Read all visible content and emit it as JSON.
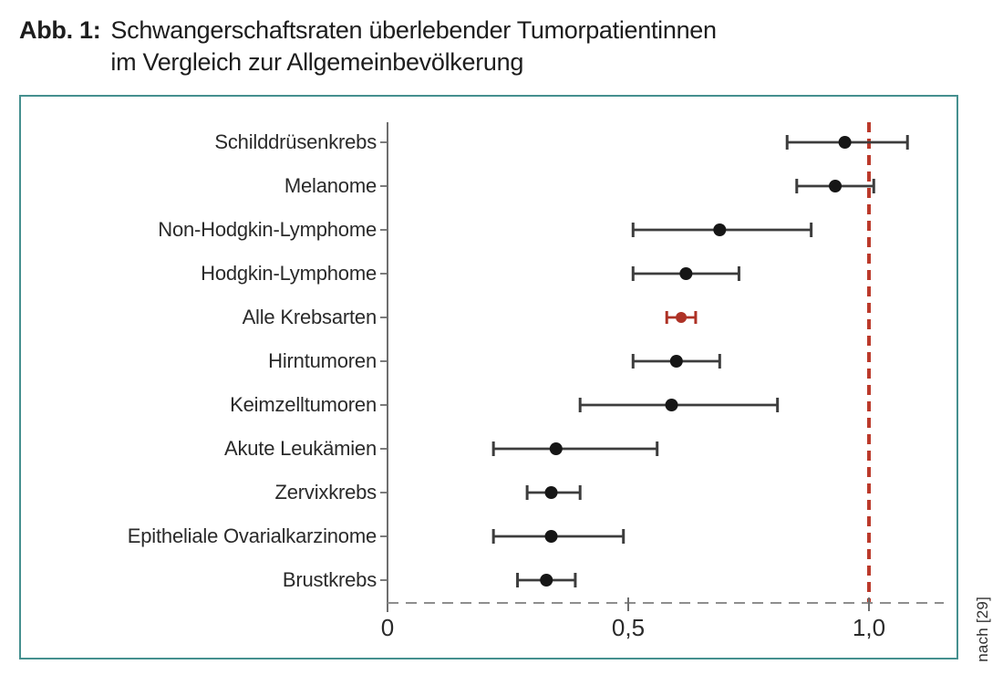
{
  "title": {
    "label": "Abb. 1:",
    "line1": "Schwangerschaftsraten überlebender Tumorpatientinnen",
    "line2": "im Vergleich zur Allgemeinbevölkerung"
  },
  "source_note": "nach [29]",
  "colors": {
    "panel_border": "#45908f",
    "errorbar": "#3d3d3d",
    "marker": "#161616",
    "highlight": "#ae3226",
    "reference_line": "#bb3a2b",
    "axis": "#6e6e6e",
    "baseline": "#8e8e8e",
    "tick_label": "#2a2a2a"
  },
  "chart_data": {
    "type": "scatter",
    "subtype": "forest-plot",
    "title": "Schwangerschaftsraten überlebender Tumorpatientinnen im Vergleich zur Allgemeinbevölkerung",
    "xlim": [
      0,
      1.15
    ],
    "grid": false,
    "reference_line_x": 1.0,
    "x_ticks": [
      {
        "value": 0,
        "label": "0"
      },
      {
        "value": 0.5,
        "label": "0,5"
      },
      {
        "value": 1.0,
        "label": "1,0"
      }
    ],
    "categories": [
      {
        "label": "Schilddrüsenkrebs",
        "value": 0.95,
        "ci_low": 0.83,
        "ci_high": 1.08,
        "highlight": false
      },
      {
        "label": "Melanome",
        "value": 0.93,
        "ci_low": 0.85,
        "ci_high": 1.01,
        "highlight": false
      },
      {
        "label": "Non-Hodgkin-Lymphome",
        "value": 0.69,
        "ci_low": 0.51,
        "ci_high": 0.88,
        "highlight": false
      },
      {
        "label": "Hodgkin-Lymphome",
        "value": 0.62,
        "ci_low": 0.51,
        "ci_high": 0.73,
        "highlight": false
      },
      {
        "label": "Alle Krebsarten",
        "value": 0.61,
        "ci_low": 0.58,
        "ci_high": 0.64,
        "highlight": true
      },
      {
        "label": "Hirntumoren",
        "value": 0.6,
        "ci_low": 0.51,
        "ci_high": 0.69,
        "highlight": false
      },
      {
        "label": "Keimzelltumoren",
        "value": 0.59,
        "ci_low": 0.4,
        "ci_high": 0.81,
        "highlight": false
      },
      {
        "label": "Akute Leukämien",
        "value": 0.35,
        "ci_low": 0.22,
        "ci_high": 0.56,
        "highlight": false
      },
      {
        "label": "Zervixkrebs",
        "value": 0.34,
        "ci_low": 0.29,
        "ci_high": 0.4,
        "highlight": false
      },
      {
        "label": "Epitheliale Ovarialkarzinome",
        "value": 0.34,
        "ci_low": 0.22,
        "ci_high": 0.49,
        "highlight": false
      },
      {
        "label": "Brustkrebs",
        "value": 0.33,
        "ci_low": 0.27,
        "ci_high": 0.39,
        "highlight": false
      }
    ]
  }
}
